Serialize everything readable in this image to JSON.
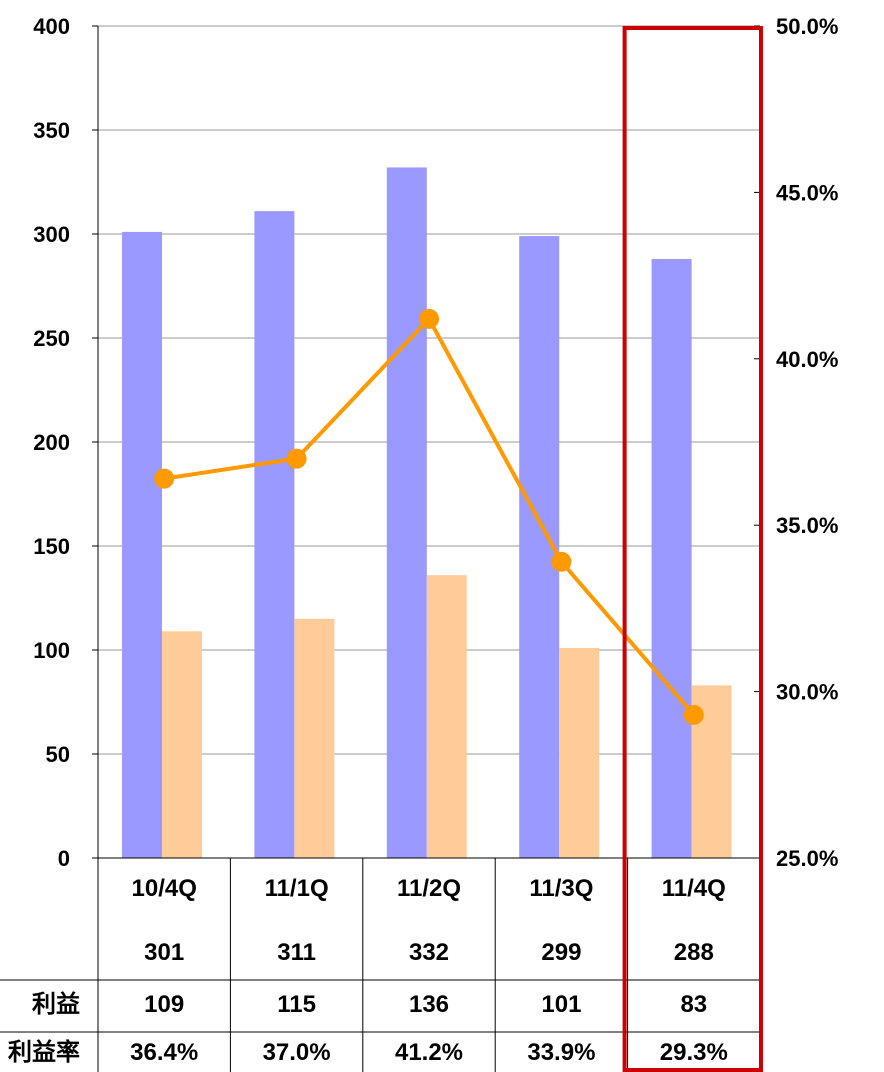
{
  "chart_data": {
    "type": "bar",
    "categories": [
      "10/4Q",
      "11/1Q",
      "11/2Q",
      "11/3Q",
      "11/4Q"
    ],
    "series": [
      {
        "values": [
          301,
          311,
          332,
          299,
          288
        ],
        "color": "#9999FF",
        "axis": "left"
      },
      {
        "name": "利益",
        "values": [
          109,
          115,
          136,
          101,
          83
        ],
        "color": "#FFCC99",
        "axis": "left"
      },
      {
        "name": "利益率",
        "type": "line",
        "values": [
          36.4,
          37.0,
          41.2,
          33.9,
          29.3
        ],
        "color": "#FF9900",
        "axis": "right"
      }
    ],
    "row_labels": [
      "",
      "利益",
      "利益率"
    ],
    "table_rows": [
      [
        "301",
        "311",
        "332",
        "299",
        "288"
      ],
      [
        "109",
        "115",
        "136",
        "101",
        "83"
      ],
      [
        "36.4%",
        "37.0%",
        "41.2%",
        "33.9%",
        "29.3%"
      ]
    ],
    "y_left": {
      "ylim": [
        0,
        400
      ],
      "ticks": [
        "0",
        "50",
        "100",
        "150",
        "200",
        "250",
        "300",
        "350",
        "400"
      ]
    },
    "y_right": {
      "ylim": [
        25.0,
        50.0
      ],
      "ticks": [
        "25.0%",
        "30.0%",
        "35.0%",
        "40.0%",
        "45.0%",
        "50.0%"
      ]
    },
    "grid": true,
    "highlight": {
      "category": "11/4Q",
      "color": "#CC0000"
    }
  }
}
